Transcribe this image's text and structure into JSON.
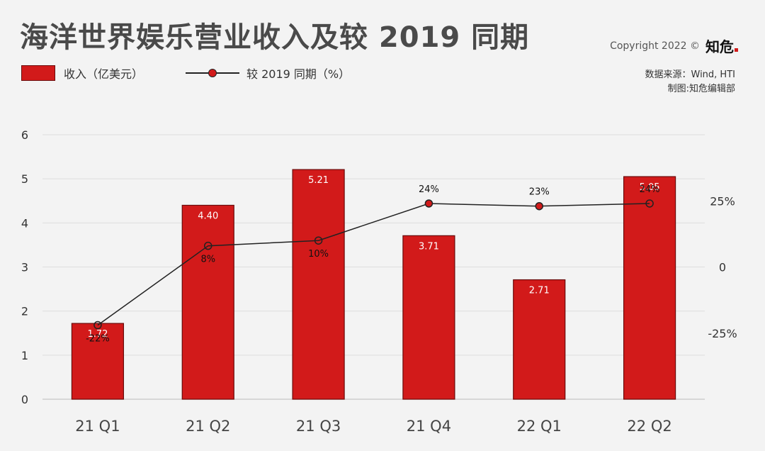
{
  "title": "海洋世界娱乐营业收入及较 2019 同期",
  "copyright": "Copyright 2022 ©",
  "brand": "知危",
  "source_line": "数据来源：Wind, HTI",
  "credit_line": "制图:知危编辑部",
  "colors": {
    "bar": "#d21a1a",
    "bar_border": "#6a0b0b",
    "line": "#222222",
    "grid": "#dedede"
  },
  "chart_data": {
    "type": "bar",
    "title": "海洋世界娱乐营业收入及较 2019 同期",
    "categories": [
      "21 Q1",
      "21 Q2",
      "21 Q3",
      "21 Q4",
      "22 Q1",
      "22 Q2"
    ],
    "series": [
      {
        "name": "收入（亿美元）",
        "type": "bar",
        "axis": "left",
        "values": [
          1.72,
          4.4,
          5.21,
          3.71,
          2.71,
          5.05
        ],
        "labels": [
          "1.72",
          "4.40",
          "5.21",
          "3.71",
          "2.71",
          "5.05"
        ]
      },
      {
        "name": "较 2019 同期（%）",
        "type": "line",
        "axis": "right",
        "values": [
          -22,
          8,
          10,
          24,
          23,
          24
        ],
        "labels": [
          "-22%",
          "8%",
          "10%",
          "24%",
          "23%",
          "24%"
        ],
        "filled_markers": [
          false,
          false,
          false,
          true,
          true,
          false
        ]
      }
    ],
    "y_left": {
      "min": 0,
      "max": 6,
      "ticks": [
        "0",
        "1",
        "2",
        "3",
        "4",
        "5",
        "6"
      ]
    },
    "y_right": {
      "min": -50,
      "max": 50,
      "tick_values": [
        -25,
        0,
        25
      ],
      "ticks": [
        "-25%",
        "0",
        "25%"
      ]
    },
    "grid": true,
    "legend": "top-left"
  }
}
